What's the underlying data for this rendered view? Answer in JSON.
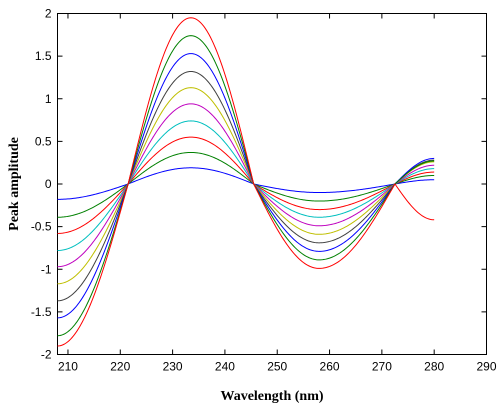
{
  "chart_data": {
    "type": "line",
    "title": "",
    "xlabel": "Wavelength (nm)",
    "ylabel": "Peak amplitude",
    "xlim": [
      208,
      290
    ],
    "ylim": [
      -2,
      2
    ],
    "x_ticks": [
      210,
      220,
      230,
      240,
      250,
      260,
      270,
      280,
      290
    ],
    "y_ticks": [
      -2,
      -1.5,
      -1,
      -0.5,
      0,
      0.5,
      1,
      1.5,
      2
    ],
    "x_tick_labels": [
      "210",
      "220",
      "230",
      "240",
      "250",
      "260",
      "270",
      "280",
      "290"
    ],
    "y_tick_labels": [
      "-2",
      "-1.5",
      "-1",
      "-0.5",
      "0",
      "0.5",
      "1",
      "1.5",
      "2"
    ],
    "grid": false,
    "legend": "none",
    "x_range": [
      208,
      280
    ],
    "model": {
      "zero_crossings_nm": [
        221.5,
        245.5,
        272.5
      ],
      "first_peak_nm": 233.5,
      "trough_nm": 258
    },
    "series": [
      {
        "color": "#0000ff",
        "values": {
          "peak_233": 0.19,
          "trough_258": -0.1,
          "end_280": 0.05,
          "start_208": -0.18
        }
      },
      {
        "color": "#008000",
        "values": {
          "peak_233": 0.37,
          "trough_258": -0.2,
          "end_280": 0.1,
          "start_208": -0.39
        }
      },
      {
        "color": "#ff0000",
        "values": {
          "peak_233": 0.55,
          "trough_258": -0.3,
          "end_280": 0.14,
          "start_208": -0.58
        }
      },
      {
        "color": "#00bfbf",
        "values": {
          "peak_233": 0.74,
          "trough_258": -0.39,
          "end_280": 0.18,
          "start_208": -0.78
        }
      },
      {
        "color": "#bf00bf",
        "values": {
          "peak_233": 0.94,
          "trough_258": -0.49,
          "end_280": 0.22,
          "start_208": -0.97
        }
      },
      {
        "color": "#bfbf00",
        "values": {
          "peak_233": 1.13,
          "trough_258": -0.59,
          "end_280": 0.26,
          "start_208": -1.17
        }
      },
      {
        "color": "#404040",
        "values": {
          "peak_233": 1.32,
          "trough_258": -0.69,
          "end_280": 0.28,
          "start_208": -1.37
        }
      },
      {
        "color": "#0000ff",
        "values": {
          "peak_233": 1.53,
          "trough_258": -0.79,
          "end_280": 0.3,
          "start_208": -1.57
        }
      },
      {
        "color": "#008000",
        "values": {
          "peak_233": 1.74,
          "trough_258": -0.89,
          "end_280": 0.27,
          "start_208": -1.78
        }
      },
      {
        "color": "#ff0000",
        "values": {
          "peak_233": 1.95,
          "trough_258": -0.99,
          "end_280": -0.42,
          "start_208": -1.9
        }
      }
    ]
  }
}
